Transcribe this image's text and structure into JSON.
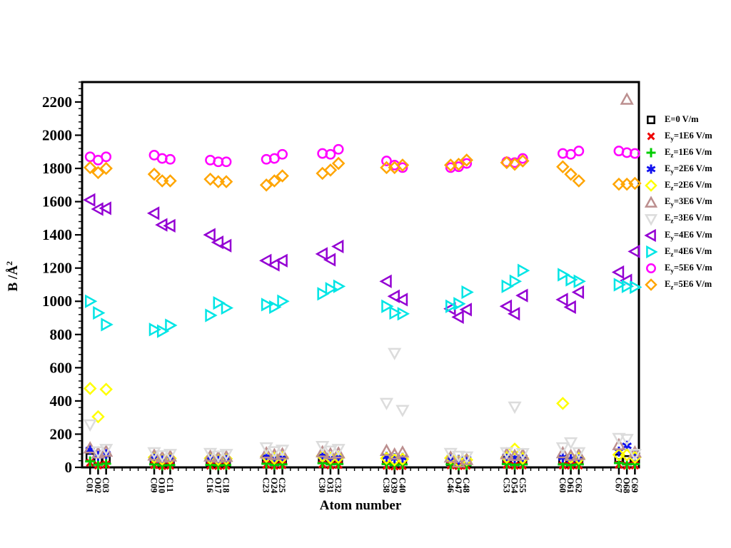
{
  "chart_data": {
    "type": "scatter",
    "title": "",
    "xlabel": "Atom number",
    "ylabel_base": "B /Å",
    "ylabel_sup": "2",
    "xlim": [
      0,
      69.5
    ],
    "ylim": [
      0,
      2320
    ],
    "ytick_major_step": 200,
    "ytick_major_max": 2200,
    "ytick_minor_step": 40,
    "grid": "off",
    "legend_position": "right-outside",
    "categories": [
      "C01",
      "O02",
      "C03",
      "C09",
      "O10",
      "C11",
      "C16",
      "O17",
      "C18",
      "C23",
      "O24",
      "C25",
      "C30",
      "O31",
      "C32",
      "C38",
      "O39",
      "C40",
      "C46",
      "O47",
      "C48",
      "C53",
      "O54",
      "C55",
      "C60",
      "O61",
      "C62",
      "C67",
      "O68",
      "C69"
    ],
    "atom_numbers": [
      1,
      2,
      3,
      9,
      10,
      11,
      16,
      17,
      18,
      23,
      24,
      25,
      30,
      31,
      32,
      38,
      39,
      40,
      46,
      47,
      48,
      53,
      54,
      55,
      60,
      61,
      62,
      67,
      68,
      69
    ],
    "series": [
      {
        "name": "E=0 V/m",
        "legend": {
          "base": "E",
          "sub": "",
          "rest": "=0 V/m"
        },
        "marker": "square",
        "color": "#000000",
        "values": [
          60,
          38,
          45,
          40,
          32,
          36,
          34,
          30,
          32,
          44,
          36,
          40,
          50,
          40,
          44,
          55,
          42,
          46,
          36,
          30,
          34,
          46,
          40,
          44,
          42,
          36,
          40,
          55,
          46,
          50
        ]
      },
      {
        "name": "Ey=1E6 V/m",
        "legend": {
          "base": "E",
          "sub": "y",
          "rest": "=1E6 V/m"
        },
        "marker": "x",
        "color": "#ee0000",
        "values": [
          28,
          12,
          18,
          14,
          8,
          10,
          10,
          8,
          10,
          16,
          10,
          14,
          18,
          12,
          15,
          10,
          6,
          8,
          12,
          8,
          10,
          15,
          10,
          12,
          12,
          10,
          12,
          16,
          10,
          12
        ]
      },
      {
        "name": "Ez=1E6 V/m",
        "legend": {
          "base": "E",
          "sub": "z",
          "rest": "=1E6 V/m"
        },
        "marker": "plus",
        "color": "#00cc00",
        "values": [
          36,
          16,
          22,
          18,
          12,
          14,
          15,
          12,
          14,
          22,
          15,
          18,
          25,
          18,
          20,
          20,
          14,
          18,
          18,
          12,
          14,
          20,
          15,
          18,
          18,
          14,
          18,
          26,
          18,
          20
        ]
      },
      {
        "name": "Ey=2E6 V/m",
        "legend": {
          "base": "E",
          "sub": "y",
          "rest": "=2E6 V/m"
        },
        "marker": "asterisk",
        "color": "#1111ee",
        "values": [
          105,
          70,
          80,
          55,
          45,
          50,
          50,
          44,
          48,
          64,
          54,
          58,
          70,
          56,
          60,
          64,
          55,
          58,
          54,
          45,
          50,
          64,
          55,
          60,
          60,
          50,
          55,
          95,
          130,
          70
        ]
      },
      {
        "name": "Ez=2E6 V/m",
        "legend": {
          "base": "E",
          "sub": "z",
          "rest": "=2E6 V/m"
        },
        "marker": "diamond",
        "color": "#ffff00",
        "values": [
          475,
          305,
          470,
          60,
          50,
          55,
          55,
          48,
          52,
          66,
          55,
          60,
          70,
          56,
          60,
          55,
          45,
          50,
          56,
          35,
          45,
          60,
          110,
          55,
          385,
          60,
          55,
          76,
          75,
          60
        ]
      },
      {
        "name": "Ey=3E6 V/m",
        "legend": {
          "base": "E",
          "sub": "y",
          "rest": "=3E6 V/m"
        },
        "marker": "triangle-up",
        "color": "#bc8f8f",
        "values": [
          115,
          85,
          95,
          72,
          60,
          66,
          66,
          60,
          64,
          85,
          75,
          80,
          92,
          80,
          85,
          100,
          78,
          90,
          60,
          30,
          45,
          80,
          70,
          75,
          86,
          70,
          75,
          135,
          2215,
          90
        ]
      },
      {
        "name": "Ez=3E6 V/m",
        "legend": {
          "base": "E",
          "sub": "z",
          "rest": "=3E6 V/m"
        },
        "marker": "triangle-down",
        "color": "#dcdcdc",
        "values": [
          258,
          95,
          110,
          90,
          72,
          80,
          86,
          70,
          80,
          120,
          96,
          105,
          128,
          100,
          110,
          387,
          688,
          345,
          86,
          69,
          65,
          90,
          365,
          85,
          120,
          150,
          90,
          176,
          170,
          80
        ]
      },
      {
        "name": "Ey=4E6 V/m",
        "legend": {
          "base": "E",
          "sub": "y",
          "rest": "=4E6 V/m"
        },
        "marker": "triangle-left",
        "color": "#9400d3",
        "values": [
          1610,
          1555,
          1560,
          1530,
          1460,
          1455,
          1400,
          1355,
          1335,
          1245,
          1220,
          1245,
          1285,
          1250,
          1330,
          1120,
          1030,
          1010,
          955,
          905,
          950,
          970,
          925,
          1035,
          1010,
          965,
          1055,
          1175,
          1125,
          1300
        ]
      },
      {
        "name": "Ez=4E6 V/m",
        "legend": {
          "base": "E",
          "sub": "z",
          "rest": "=4E6 V/m"
        },
        "marker": "triangle-right",
        "color": "#00e5e5",
        "values": [
          1000,
          930,
          860,
          830,
          820,
          855,
          915,
          990,
          960,
          980,
          965,
          1000,
          1045,
          1075,
          1090,
          970,
          930,
          925,
          970,
          985,
          1055,
          1090,
          1120,
          1185,
          1160,
          1130,
          1120,
          1100,
          1090,
          1085
        ]
      },
      {
        "name": "Ey=5E6 V/m",
        "legend": {
          "base": "E",
          "sub": "y",
          "rest": "=5E6 V/m"
        },
        "marker": "circle",
        "color": "#ff00ff",
        "values": [
          1870,
          1850,
          1870,
          1880,
          1860,
          1855,
          1850,
          1840,
          1840,
          1855,
          1860,
          1885,
          1890,
          1885,
          1915,
          1845,
          1820,
          1805,
          1805,
          1810,
          1830,
          1840,
          1835,
          1860,
          1890,
          1885,
          1905,
          1905,
          1895,
          1890
        ]
      },
      {
        "name": "Ez=5E6 V/m",
        "legend": {
          "base": "E",
          "sub": "z",
          "rest": "=5E6 V/m"
        },
        "marker": "diamond",
        "color": "#ffa500",
        "values": [
          1805,
          1775,
          1800,
          1765,
          1725,
          1725,
          1735,
          1720,
          1720,
          1700,
          1725,
          1755,
          1770,
          1790,
          1830,
          1805,
          1805,
          1820,
          1820,
          1825,
          1850,
          1835,
          1825,
          1845,
          1810,
          1765,
          1725,
          1705,
          1705,
          1710
        ]
      }
    ],
    "colors": {
      "frame": "#000000",
      "background": "#ffffff",
      "text": "#000000"
    }
  }
}
